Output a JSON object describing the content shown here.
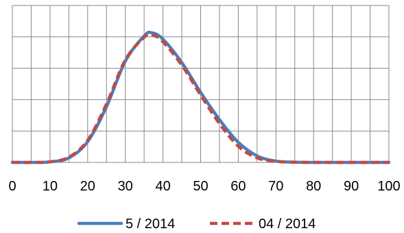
{
  "chart_data": {
    "type": "line",
    "title": "",
    "xlabel": "",
    "ylabel": "",
    "xlim": [
      0,
      100
    ],
    "x_ticks": [
      "0",
      "10",
      "20",
      "30",
      "40",
      "50",
      "60",
      "70",
      "80",
      "90",
      "100"
    ],
    "grid": true,
    "legend_position": "bottom",
    "x": [
      0,
      5,
      10,
      15,
      20,
      25,
      30,
      35,
      37,
      40,
      45,
      50,
      55,
      60,
      65,
      70,
      75,
      80,
      85,
      90,
      95,
      100
    ],
    "series": [
      {
        "name": "5 / 2014",
        "style": "solid",
        "color": "#4a7ebb",
        "values": [
          0.0,
          0.0,
          0.4,
          3.5,
          16.0,
          43.0,
          78.0,
          97.5,
          100.0,
          95.0,
          77.0,
          54.0,
          33.0,
          15.5,
          5.0,
          1.0,
          0.2,
          0.0,
          0.0,
          0.0,
          0.0,
          0.0
        ]
      },
      {
        "name": "04 / 2014",
        "style": "dashed",
        "color": "#be4b48",
        "values": [
          0.0,
          0.0,
          0.5,
          4.0,
          17.0,
          45.0,
          79.0,
          96.5,
          98.5,
          93.0,
          75.0,
          52.0,
          30.0,
          12.5,
          3.5,
          0.8,
          0.2,
          0.0,
          0.0,
          0.0,
          0.0,
          0.0
        ]
      }
    ]
  }
}
